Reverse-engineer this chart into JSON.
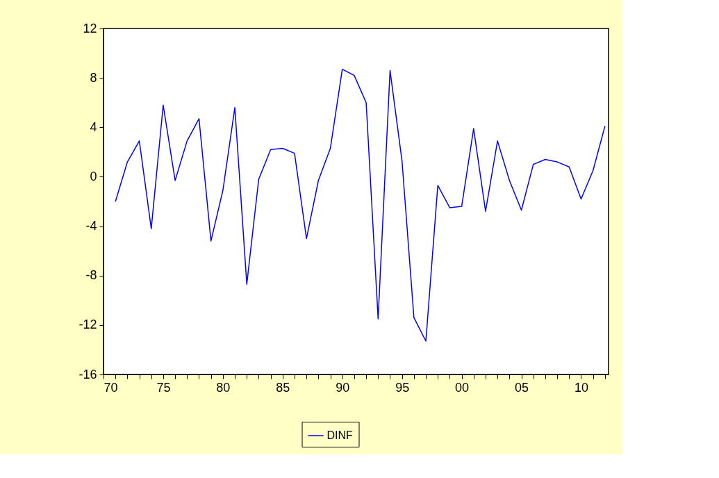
{
  "chart_data": {
    "type": "line",
    "x": [
      1971,
      1972,
      1973,
      1974,
      1975,
      1976,
      1977,
      1978,
      1979,
      1980,
      1981,
      1982,
      1983,
      1984,
      1985,
      1986,
      1987,
      1988,
      1989,
      1990,
      1991,
      1992,
      1993,
      1994,
      1995,
      1996,
      1997,
      1998,
      1999,
      2000,
      2001,
      2002,
      2003,
      2004,
      2005,
      2006,
      2007,
      2008,
      2009,
      2010,
      2011,
      2012
    ],
    "series": [
      {
        "name": "DINF",
        "color": "#0000ff",
        "values": [
          -2.0,
          1.2,
          2.9,
          -4.2,
          5.8,
          -0.3,
          2.9,
          4.7,
          -5.2,
          -1.1,
          5.6,
          -8.7,
          -0.2,
          2.2,
          2.3,
          1.9,
          -5.0,
          -0.3,
          2.3,
          8.7,
          8.2,
          6.0,
          -11.5,
          8.6,
          1.3,
          -11.4,
          -13.3,
          -0.7,
          -2.5,
          -2.4,
          3.9,
          -2.8,
          2.9,
          -0.3,
          -2.7,
          1.0,
          1.4,
          1.2,
          0.8,
          -1.8,
          0.5,
          4.1
        ]
      }
    ],
    "xlim": [
      1970,
      2012.3
    ],
    "xticks": [
      {
        "value": 1970,
        "label": "70"
      },
      {
        "value": 1971,
        "label": null
      },
      {
        "value": 1972,
        "label": null
      },
      {
        "value": 1973,
        "label": null
      },
      {
        "value": 1974,
        "label": null
      },
      {
        "value": 1975,
        "label": "75"
      },
      {
        "value": 1976,
        "label": null
      },
      {
        "value": 1977,
        "label": null
      },
      {
        "value": 1978,
        "label": null
      },
      {
        "value": 1979,
        "label": null
      },
      {
        "value": 1980,
        "label": "80"
      },
      {
        "value": 1981,
        "label": null
      },
      {
        "value": 1982,
        "label": null
      },
      {
        "value": 1983,
        "label": null
      },
      {
        "value": 1984,
        "label": null
      },
      {
        "value": 1985,
        "label": "85"
      },
      {
        "value": 1986,
        "label": null
      },
      {
        "value": 1987,
        "label": null
      },
      {
        "value": 1988,
        "label": null
      },
      {
        "value": 1989,
        "label": null
      },
      {
        "value": 1990,
        "label": "90"
      },
      {
        "value": 1991,
        "label": null
      },
      {
        "value": 1992,
        "label": null
      },
      {
        "value": 1993,
        "label": null
      },
      {
        "value": 1994,
        "label": null
      },
      {
        "value": 1995,
        "label": "95"
      },
      {
        "value": 1996,
        "label": null
      },
      {
        "value": 1997,
        "label": null
      },
      {
        "value": 1998,
        "label": null
      },
      {
        "value": 1999,
        "label": null
      },
      {
        "value": 2000,
        "label": "00"
      },
      {
        "value": 2001,
        "label": null
      },
      {
        "value": 2002,
        "label": null
      },
      {
        "value": 2003,
        "label": null
      },
      {
        "value": 2004,
        "label": null
      },
      {
        "value": 2005,
        "label": "05"
      },
      {
        "value": 2006,
        "label": null
      },
      {
        "value": 2007,
        "label": null
      },
      {
        "value": 2008,
        "label": null
      },
      {
        "value": 2009,
        "label": null
      },
      {
        "value": 2010,
        "label": "10"
      },
      {
        "value": 2011,
        "label": null
      },
      {
        "value": 2012,
        "label": null
      }
    ],
    "ylim": [
      -16,
      12
    ],
    "yticks": [
      -16,
      -12,
      -8,
      -4,
      0,
      4,
      8,
      12
    ],
    "grid": false,
    "legend": "bottom",
    "marker": "none",
    "line_style": "solid"
  }
}
